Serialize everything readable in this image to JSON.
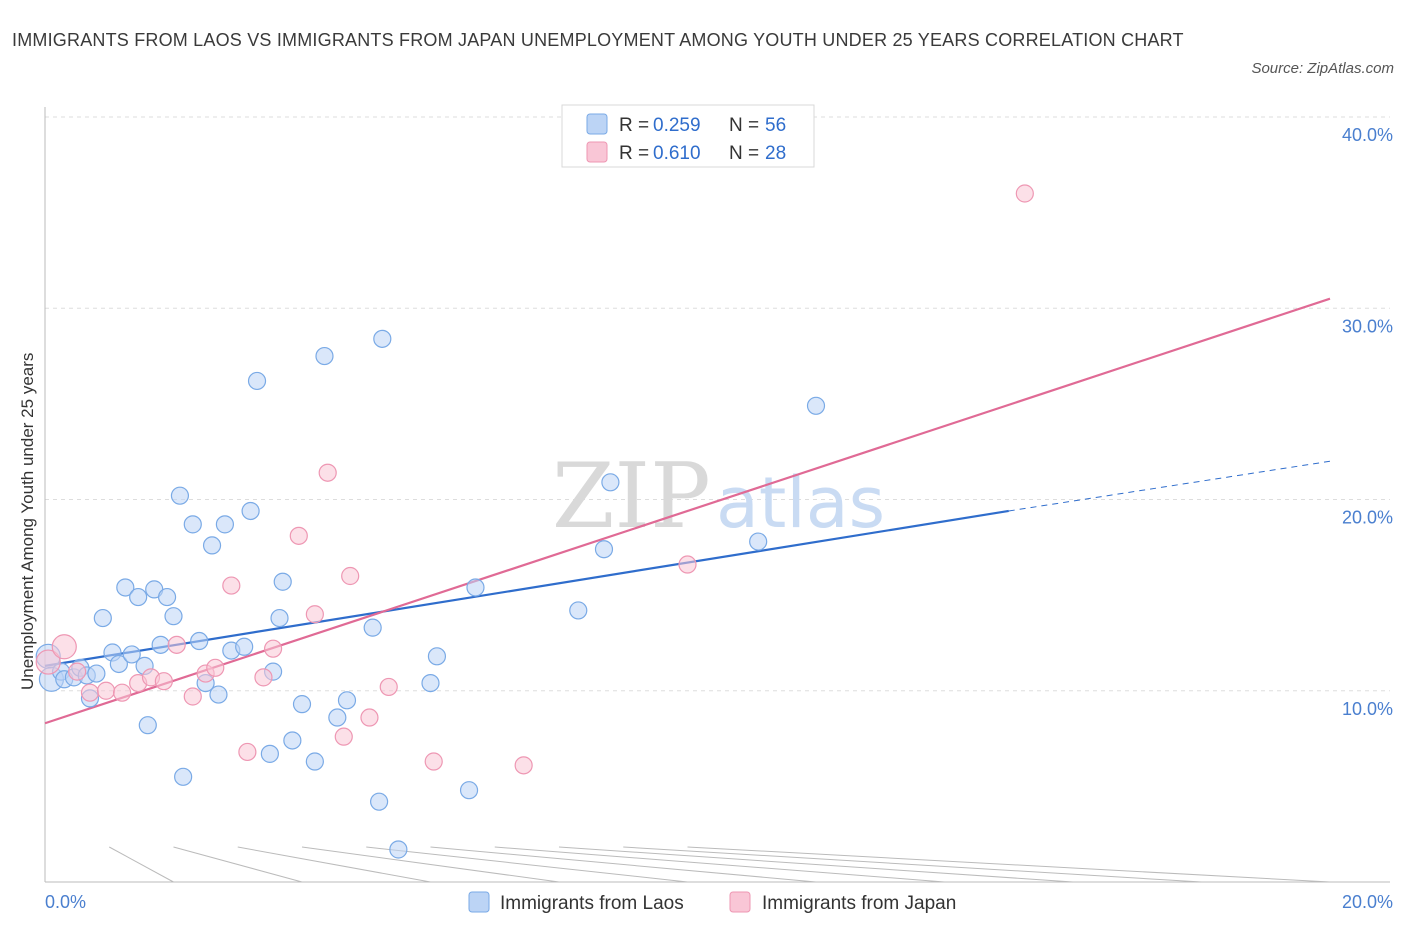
{
  "title": "IMMIGRANTS FROM LAOS VS IMMIGRANTS FROM JAPAN UNEMPLOYMENT AMONG YOUTH UNDER 25 YEARS CORRELATION CHART",
  "source": "Source: ZipAtlas.com",
  "watermark": {
    "zip": "ZIP",
    "atlas": "atlas"
  },
  "legend": {
    "laos": {
      "r_label": "R =",
      "r_value": "0.259",
      "n_label": "N =",
      "n_value": "56"
    },
    "japan": {
      "r_label": "R =",
      "r_value": "0.610",
      "n_label": "N =",
      "n_value": "28"
    }
  },
  "colors": {
    "laos_fill": "#bcd4f5",
    "laos_stroke": "#7aaae6",
    "laos_line": "#2f6dcc",
    "japan_fill": "#f9c6d6",
    "japan_stroke": "#ee97b3",
    "japan_line": "#e06a95",
    "grid": "#dddddd",
    "tick_text": "#4a7fcf"
  },
  "chart_data": {
    "type": "scatter",
    "title": "IMMIGRANTS FROM LAOS VS IMMIGRANTS FROM JAPAN UNEMPLOYMENT AMONG YOUTH UNDER 25 YEARS CORRELATION CHART",
    "xlabel": "",
    "ylabel": "Unemployment Among Youth under 25 years",
    "xlim": [
      0,
      20
    ],
    "ylim": [
      0,
      40
    ],
    "x_ticks": [
      {
        "value": 0,
        "label": "0.0%"
      },
      {
        "value": 20,
        "label": "20.0%"
      }
    ],
    "x_minor_ticks": [
      2,
      4,
      6,
      8,
      10,
      12,
      14,
      16,
      18,
      20
    ],
    "y_ticks": [
      {
        "value": 10,
        "label": "10.0%"
      },
      {
        "value": 20,
        "label": "20.0%"
      },
      {
        "value": 30,
        "label": "30.0%"
      },
      {
        "value": 40,
        "label": "40.0%"
      }
    ],
    "series": [
      {
        "name": "Immigrants from Laos",
        "color_key": "laos",
        "R": 0.259,
        "N": 56,
        "trend": {
          "x1": 0,
          "y1": 11.3,
          "x2": 15.0,
          "y2": 19.4,
          "dash_x2": 20.0,
          "dash_y2": 22.0
        },
        "points": [
          [
            0.05,
            11.8
          ],
          [
            0.1,
            10.6
          ],
          [
            0.25,
            11.0
          ],
          [
            0.3,
            10.6
          ],
          [
            0.45,
            10.7
          ],
          [
            0.55,
            11.2
          ],
          [
            0.65,
            10.8
          ],
          [
            0.7,
            9.6
          ],
          [
            0.8,
            10.9
          ],
          [
            0.9,
            13.8
          ],
          [
            1.05,
            12.0
          ],
          [
            1.15,
            11.4
          ],
          [
            1.25,
            15.4
          ],
          [
            1.35,
            11.9
          ],
          [
            1.45,
            14.9
          ],
          [
            1.55,
            11.3
          ],
          [
            1.6,
            8.2
          ],
          [
            1.7,
            15.3
          ],
          [
            1.8,
            12.4
          ],
          [
            1.9,
            14.9
          ],
          [
            2.0,
            13.9
          ],
          [
            2.1,
            20.2
          ],
          [
            2.15,
            5.5
          ],
          [
            2.3,
            18.7
          ],
          [
            2.4,
            12.6
          ],
          [
            2.5,
            10.4
          ],
          [
            2.6,
            17.6
          ],
          [
            2.7,
            9.8
          ],
          [
            2.8,
            18.7
          ],
          [
            2.9,
            12.1
          ],
          [
            3.1,
            12.3
          ],
          [
            3.2,
            19.4
          ],
          [
            3.3,
            26.2
          ],
          [
            3.5,
            6.7
          ],
          [
            3.55,
            11.0
          ],
          [
            3.65,
            13.8
          ],
          [
            3.7,
            15.7
          ],
          [
            3.85,
            7.4
          ],
          [
            4.0,
            9.3
          ],
          [
            4.2,
            6.3
          ],
          [
            4.35,
            27.5
          ],
          [
            4.55,
            8.6
          ],
          [
            4.7,
            9.5
          ],
          [
            5.1,
            13.3
          ],
          [
            5.2,
            4.2
          ],
          [
            5.25,
            28.4
          ],
          [
            5.5,
            1.7
          ],
          [
            6.0,
            10.4
          ],
          [
            6.1,
            11.8
          ],
          [
            6.6,
            4.8
          ],
          [
            6.7,
            15.4
          ],
          [
            8.3,
            14.2
          ],
          [
            8.7,
            17.4
          ],
          [
            8.8,
            20.9
          ],
          [
            11.1,
            17.8
          ],
          [
            12.0,
            24.9
          ]
        ],
        "point_sizes_note": "points at x<0.2 drawn larger",
        "large_points": [
          [
            0.05,
            11.8
          ],
          [
            0.1,
            10.6
          ]
        ]
      },
      {
        "name": "Immigrants from Japan",
        "color_key": "japan",
        "R": 0.61,
        "N": 28,
        "trend": {
          "x1": 0,
          "y1": 8.3,
          "x2": 20.0,
          "y2": 30.5
        },
        "points": [
          [
            0.05,
            11.5
          ],
          [
            0.3,
            12.3
          ],
          [
            0.5,
            11.0
          ],
          [
            0.7,
            9.9
          ],
          [
            0.95,
            10.0
          ],
          [
            1.2,
            9.9
          ],
          [
            1.45,
            10.4
          ],
          [
            1.65,
            10.7
          ],
          [
            1.85,
            10.5
          ],
          [
            2.05,
            12.4
          ],
          [
            2.3,
            9.7
          ],
          [
            2.5,
            10.9
          ],
          [
            2.65,
            11.2
          ],
          [
            2.9,
            15.5
          ],
          [
            3.15,
            6.8
          ],
          [
            3.4,
            10.7
          ],
          [
            3.55,
            12.2
          ],
          [
            3.95,
            18.1
          ],
          [
            4.2,
            14.0
          ],
          [
            4.4,
            21.4
          ],
          [
            4.65,
            7.6
          ],
          [
            4.75,
            16.0
          ],
          [
            5.05,
            8.6
          ],
          [
            5.35,
            10.2
          ],
          [
            6.05,
            6.3
          ],
          [
            7.45,
            6.1
          ],
          [
            10.0,
            16.6
          ],
          [
            15.25,
            36.0
          ]
        ],
        "large_points": [
          [
            0.05,
            11.5
          ],
          [
            0.3,
            12.3
          ]
        ]
      }
    ],
    "legend_position": "top-center",
    "grid": true
  },
  "bottom_legend": {
    "laos": "Immigrants from Laos",
    "japan": "Immigrants from Japan"
  }
}
